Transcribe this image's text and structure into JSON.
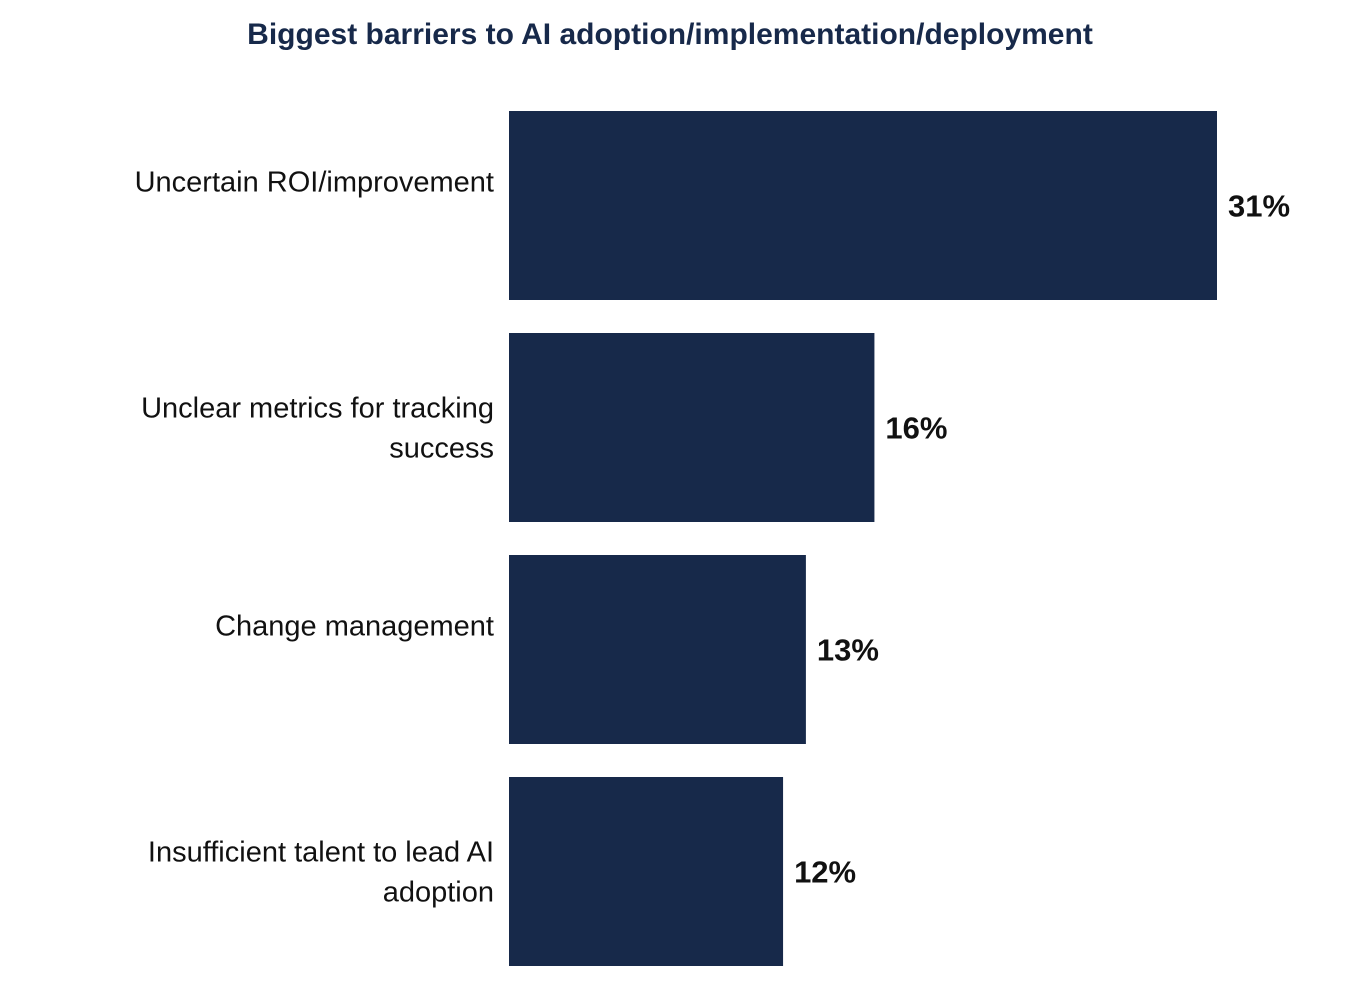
{
  "colors": {
    "bar": "#17294a",
    "title": "#17294a",
    "text": "#111111"
  },
  "chart_data": {
    "type": "bar",
    "orientation": "horizontal",
    "title": "Biggest barriers to AI adoption/implementation/deployment",
    "categories": [
      [
        "Uncertain ROI/improvement"
      ],
      [
        "Unclear metrics for tracking",
        "success"
      ],
      [
        "Change management"
      ],
      [
        "Insufficient talent to lead AI",
        "adoption"
      ]
    ],
    "values": [
      31,
      16,
      13,
      12
    ],
    "value_labels": [
      "31%",
      "16%",
      "13%",
      "12%"
    ],
    "xlim": [
      0,
      31
    ],
    "xlabel": "",
    "ylabel": "",
    "grid": false,
    "legend": "none"
  }
}
